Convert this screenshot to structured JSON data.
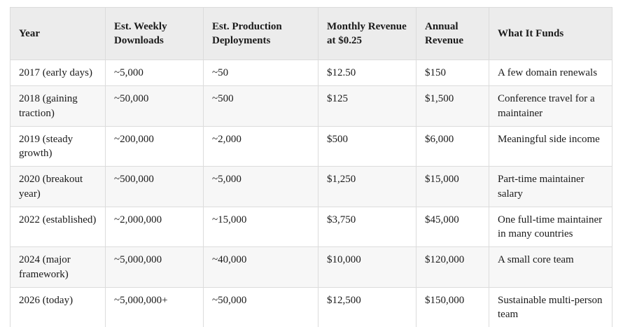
{
  "colors": {
    "page_background": "#ffffff",
    "header_background": "#ececec",
    "row_background": "#ffffff",
    "row_alternate_background": "#f7f7f7",
    "border": "#dcdcdc",
    "text": "#1a1a1a"
  },
  "chart_data": {
    "type": "table",
    "columns": [
      "Year",
      "Est. Weekly Downloads",
      "Est. Production Deployments",
      "Monthly Revenue at $0.25",
      "Annual Revenue",
      "What It Funds"
    ],
    "rows": [
      [
        "2017 (early days)",
        "~5,000",
        "~50",
        "$12.50",
        "$150",
        "A few domain renewals"
      ],
      [
        "2018 (gaining traction)",
        "~50,000",
        "~500",
        "$125",
        "$1,500",
        "Conference travel for a maintainer"
      ],
      [
        "2019 (steady growth)",
        "~200,000",
        "~2,000",
        "$500",
        "$6,000",
        "Meaningful side income"
      ],
      [
        "2020 (breakout year)",
        "~500,000",
        "~5,000",
        "$1,250",
        "$15,000",
        "Part-time maintainer salary"
      ],
      [
        "2022 (established)",
        "~2,000,000",
        "~15,000",
        "$3,750",
        "$45,000",
        "One full-time maintainer in many countries"
      ],
      [
        "2024 (major framework)",
        "~5,000,000",
        "~40,000",
        "$10,000",
        "$120,000",
        "A small core team"
      ],
      [
        "2026 (today)",
        "~5,000,000+",
        "~50,000",
        "$12,500",
        "$150,000",
        "Sustainable multi-person team"
      ]
    ]
  }
}
